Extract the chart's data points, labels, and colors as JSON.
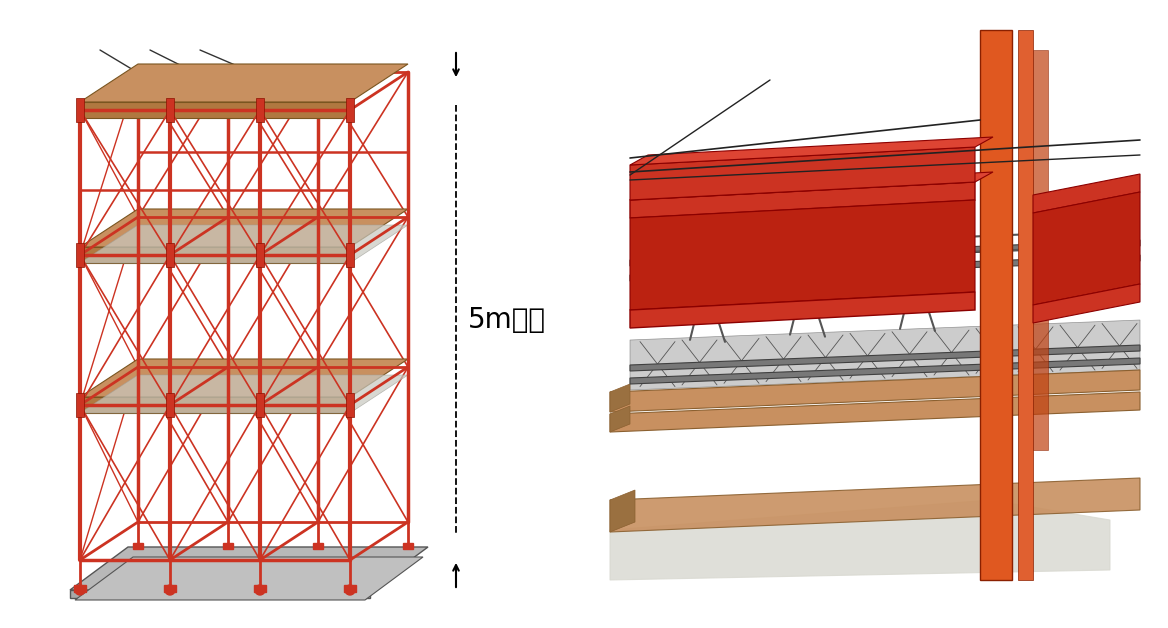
{
  "background_color": "#ffffff",
  "scaffold_color": "#cc3322",
  "wood_color": "#c89060",
  "gray_color": "#b8b8b8",
  "dark_gray": "#555555",
  "orange_color": "#e05820",
  "light_gray": "#d0d0cc",
  "annotation_text": "5m以上",
  "annotation_fontsize": 20,
  "figsize": [
    11.68,
    6.28
  ],
  "dpi": 100
}
